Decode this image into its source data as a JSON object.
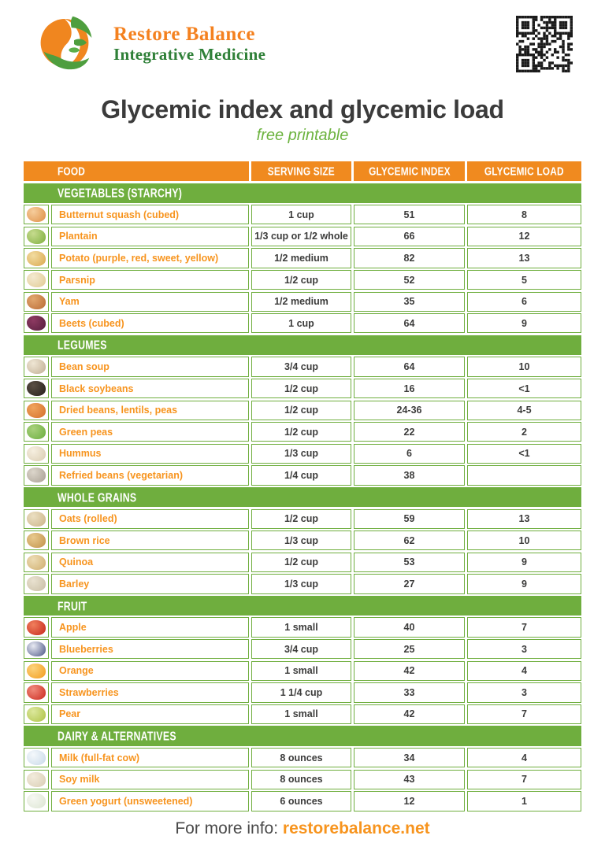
{
  "brand": {
    "name_line1": "Restore Balance",
    "name_line2": "Integrative Medicine",
    "colors": {
      "orange": "#F08A1F",
      "green": "#6FAE3E",
      "logo_text_orange": "#F4811F",
      "logo_text_green": "#2F8038"
    }
  },
  "header": {
    "title": "Glycemic index and glycemic load",
    "subtitle": "free printable"
  },
  "qr": {
    "icon": "qr-code",
    "present": true
  },
  "table": {
    "columns": [
      "FOOD",
      "SERVING SIZE",
      "GLYCEMIC INDEX",
      "GLYCEMIC LOAD"
    ],
    "sections": [
      {
        "title": "VEGETABLES (STARCHY)",
        "rows": [
          {
            "icon": "butternut-squash-icon",
            "icon_color": "#DE8F45",
            "icon_hi": "#F6CD9C",
            "food": "Butternut squash (cubed)",
            "serving": "1 cup",
            "gi": "51",
            "gl": "8"
          },
          {
            "icon": "plantain-icon",
            "icon_color": "#7FAF3F",
            "icon_hi": "#C6DB8E",
            "food": "Plantain",
            "serving": "1/3 cup or 1/2 whole",
            "gi": "66",
            "gl": "12"
          },
          {
            "icon": "potato-icon",
            "icon_color": "#D9A84E",
            "icon_hi": "#F2DCA0",
            "food": "Potato (purple, red, sweet, yellow)",
            "serving": "1/2 medium",
            "gi": "82",
            "gl": "13"
          },
          {
            "icon": "parsnip-icon",
            "icon_color": "#E0C993",
            "icon_hi": "#F4EAD0",
            "food": "Parsnip",
            "serving": "1/2 cup",
            "gi": "52",
            "gl": "5"
          },
          {
            "icon": "yam-icon",
            "icon_color": "#B96B35",
            "icon_hi": "#E2A76F",
            "food": "Yam",
            "serving": "1/2 medium",
            "gi": "35",
            "gl": "6"
          },
          {
            "icon": "beets-icon",
            "icon_color": "#571F3E",
            "icon_hi": "#8E3A62",
            "food": "Beets (cubed)",
            "serving": "1 cup",
            "gi": "64",
            "gl": "9"
          }
        ]
      },
      {
        "title": "LEGUMES",
        "rows": [
          {
            "icon": "bean-soup-icon",
            "icon_color": "#C0AE94",
            "icon_hi": "#EFE6D4",
            "food": "Bean soup",
            "serving": "3/4 cup",
            "gi": "64",
            "gl": "10"
          },
          {
            "icon": "black-soybeans-icon",
            "icon_color": "#26201B",
            "icon_hi": "#5A4F44",
            "food": "Black soybeans",
            "serving": "1/2 cup",
            "gi": "16",
            "gl": "<1"
          },
          {
            "icon": "dried-beans-lentils-peas-icon",
            "icon_color": "#D4702B",
            "icon_hi": "#F0A45C",
            "food": "Dried beans, lentils, peas",
            "serving": "1/2 cup",
            "gi": "24-36",
            "gl": "4-5"
          },
          {
            "icon": "green-peas-icon",
            "icon_color": "#6CAE3F",
            "icon_hi": "#A8D17C",
            "food": "Green peas",
            "serving": "1/2 cup",
            "gi": "22",
            "gl": "2"
          },
          {
            "icon": "hummus-icon",
            "icon_color": "#D9CBB0",
            "icon_hi": "#F6EFE0",
            "food": "Hummus",
            "serving": "1/3 cup",
            "gi": "6",
            "gl": "<1"
          },
          {
            "icon": "refried-beans-icon",
            "icon_color": "#A89F93",
            "icon_hi": "#DCD6CB",
            "food": "Refried beans (vegetarian)",
            "serving": "1/4 cup",
            "gi": "38",
            "gl": ""
          }
        ]
      },
      {
        "title": "WHOLE GRAINS",
        "rows": [
          {
            "icon": "oats-icon",
            "icon_color": "#CBB488",
            "icon_hi": "#EBDFC2",
            "food": "Oats (rolled)",
            "serving": "1/2 cup",
            "gi": "59",
            "gl": "13"
          },
          {
            "icon": "brown-rice-icon",
            "icon_color": "#C1924A",
            "icon_hi": "#E8C98D",
            "food": "Brown rice",
            "serving": "1/3 cup",
            "gi": "62",
            "gl": "10"
          },
          {
            "icon": "quinoa-icon",
            "icon_color": "#CFAE6E",
            "icon_hi": "#EDDCB4",
            "food": "Quinoa",
            "serving": "1/2 cup",
            "gi": "53",
            "gl": "9"
          },
          {
            "icon": "barley-icon",
            "icon_color": "#C8BDA4",
            "icon_hi": "#E9E2D0",
            "food": "Barley",
            "serving": "1/3 cup",
            "gi": "27",
            "gl": "9"
          }
        ]
      },
      {
        "title": "FRUIT",
        "rows": [
          {
            "icon": "apple-icon",
            "icon_color": "#C6271D",
            "icon_hi": "#F07F5C",
            "food": "Apple",
            "serving": "1 small",
            "gi": "40",
            "gl": "7"
          },
          {
            "icon": "blueberries-icon",
            "icon_color": "#4A5585",
            "icon_hi": "#E8EAF2",
            "food": "Blueberries",
            "serving": "3/4 cup",
            "gi": "25",
            "gl": "3"
          },
          {
            "icon": "orange-icon",
            "icon_color": "#F29B1D",
            "icon_hi": "#FCD37C",
            "food": "Orange",
            "serving": "1 small",
            "gi": "42",
            "gl": "4"
          },
          {
            "icon": "strawberries-icon",
            "icon_color": "#CB2A1F",
            "icon_hi": "#F08A7B",
            "food": "Strawberries",
            "serving": "1 1/4 cup",
            "gi": "33",
            "gl": "3"
          },
          {
            "icon": "pear-icon",
            "icon_color": "#AEC246",
            "icon_hi": "#DCE89C",
            "food": "Pear",
            "serving": "1 small",
            "gi": "42",
            "gl": "7"
          }
        ]
      },
      {
        "title": "DAIRY & ALTERNATIVES",
        "rows": [
          {
            "icon": "milk-icon",
            "icon_color": "#C8D9E8",
            "icon_hi": "#F4F8FB",
            "food": "Milk (full-fat cow)",
            "serving": "8 ounces",
            "gi": "34",
            "gl": "4"
          },
          {
            "icon": "soy-milk-icon",
            "icon_color": "#D9CDB4",
            "icon_hi": "#F2EBDC",
            "food": "Soy milk",
            "serving": "8 ounces",
            "gi": "43",
            "gl": "7"
          },
          {
            "icon": "green-yogurt-icon",
            "icon_color": "#DCE5D2",
            "icon_hi": "#F6F8F2",
            "food": "Green yogurt (unsweetened)",
            "serving": "6 ounces",
            "gi": "12",
            "gl": "1"
          }
        ]
      }
    ]
  },
  "footer": {
    "prefix": "For more info: ",
    "link": "restorebalance.net"
  }
}
